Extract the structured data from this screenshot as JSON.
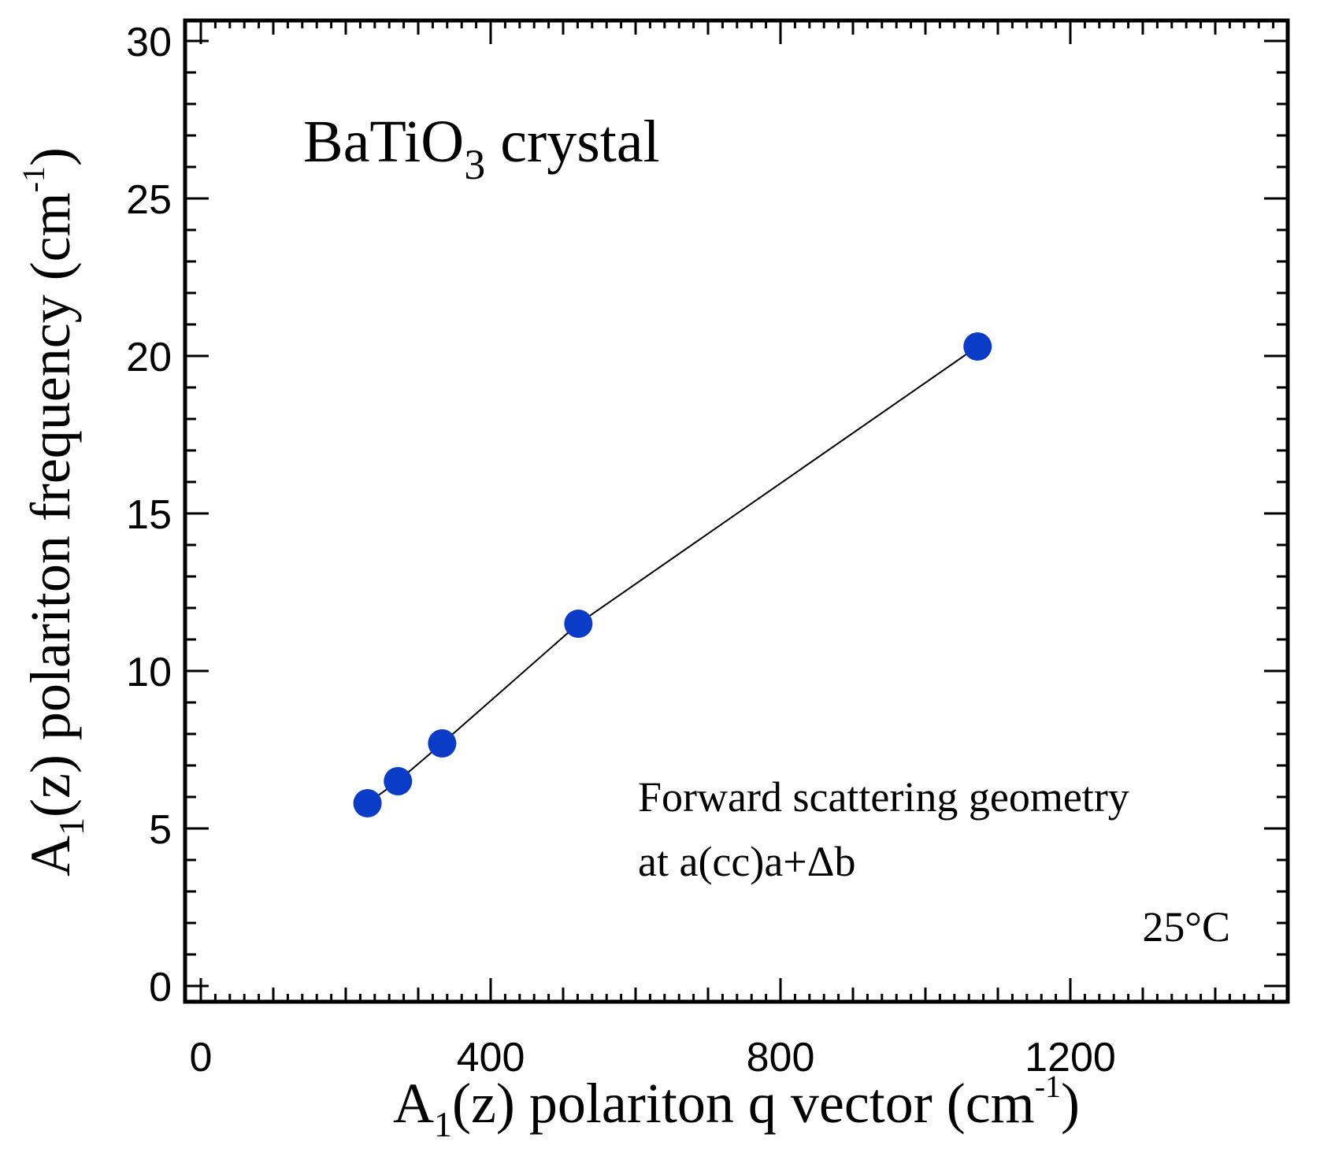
{
  "chart_data": {
    "type": "scatter",
    "title": "",
    "annotations": {
      "sample_main": "BaTiO",
      "sample_sub": "3",
      "sample_rest": " crystal",
      "geometry_line1": "Forward scattering geometry",
      "geometry_line2": "at a(cc)a+Δb",
      "temperature": "25°C"
    },
    "xlabel": {
      "pre": "A",
      "sub": "1",
      "mid": "(z) polariton q vector (cm",
      "sup": "-1",
      "post": ")"
    },
    "ylabel": {
      "pre": "A",
      "sub": "1",
      "mid": "(z) polariton frequency (cm",
      "sup": "-1",
      "post": ")"
    },
    "xlim": [
      0,
      1500
    ],
    "ylim": [
      0,
      30
    ],
    "x_ticks": [
      0,
      400,
      800,
      1200
    ],
    "x_tick_labels": [
      "0",
      "400",
      "800",
      "1200"
    ],
    "y_ticks": [
      0,
      5,
      10,
      15,
      20,
      25,
      30
    ],
    "y_tick_labels": [
      "0",
      "5",
      "10",
      "15",
      "20",
      "25",
      "30"
    ],
    "series": [
      {
        "name": "A1(z) polariton",
        "marker_color": "#0a3cc8",
        "line_color": "#000000",
        "x": [
          230,
          272,
          333,
          521,
          1072
        ],
        "y": [
          5.8,
          6.5,
          7.7,
          11.5,
          20.3
        ]
      }
    ]
  }
}
